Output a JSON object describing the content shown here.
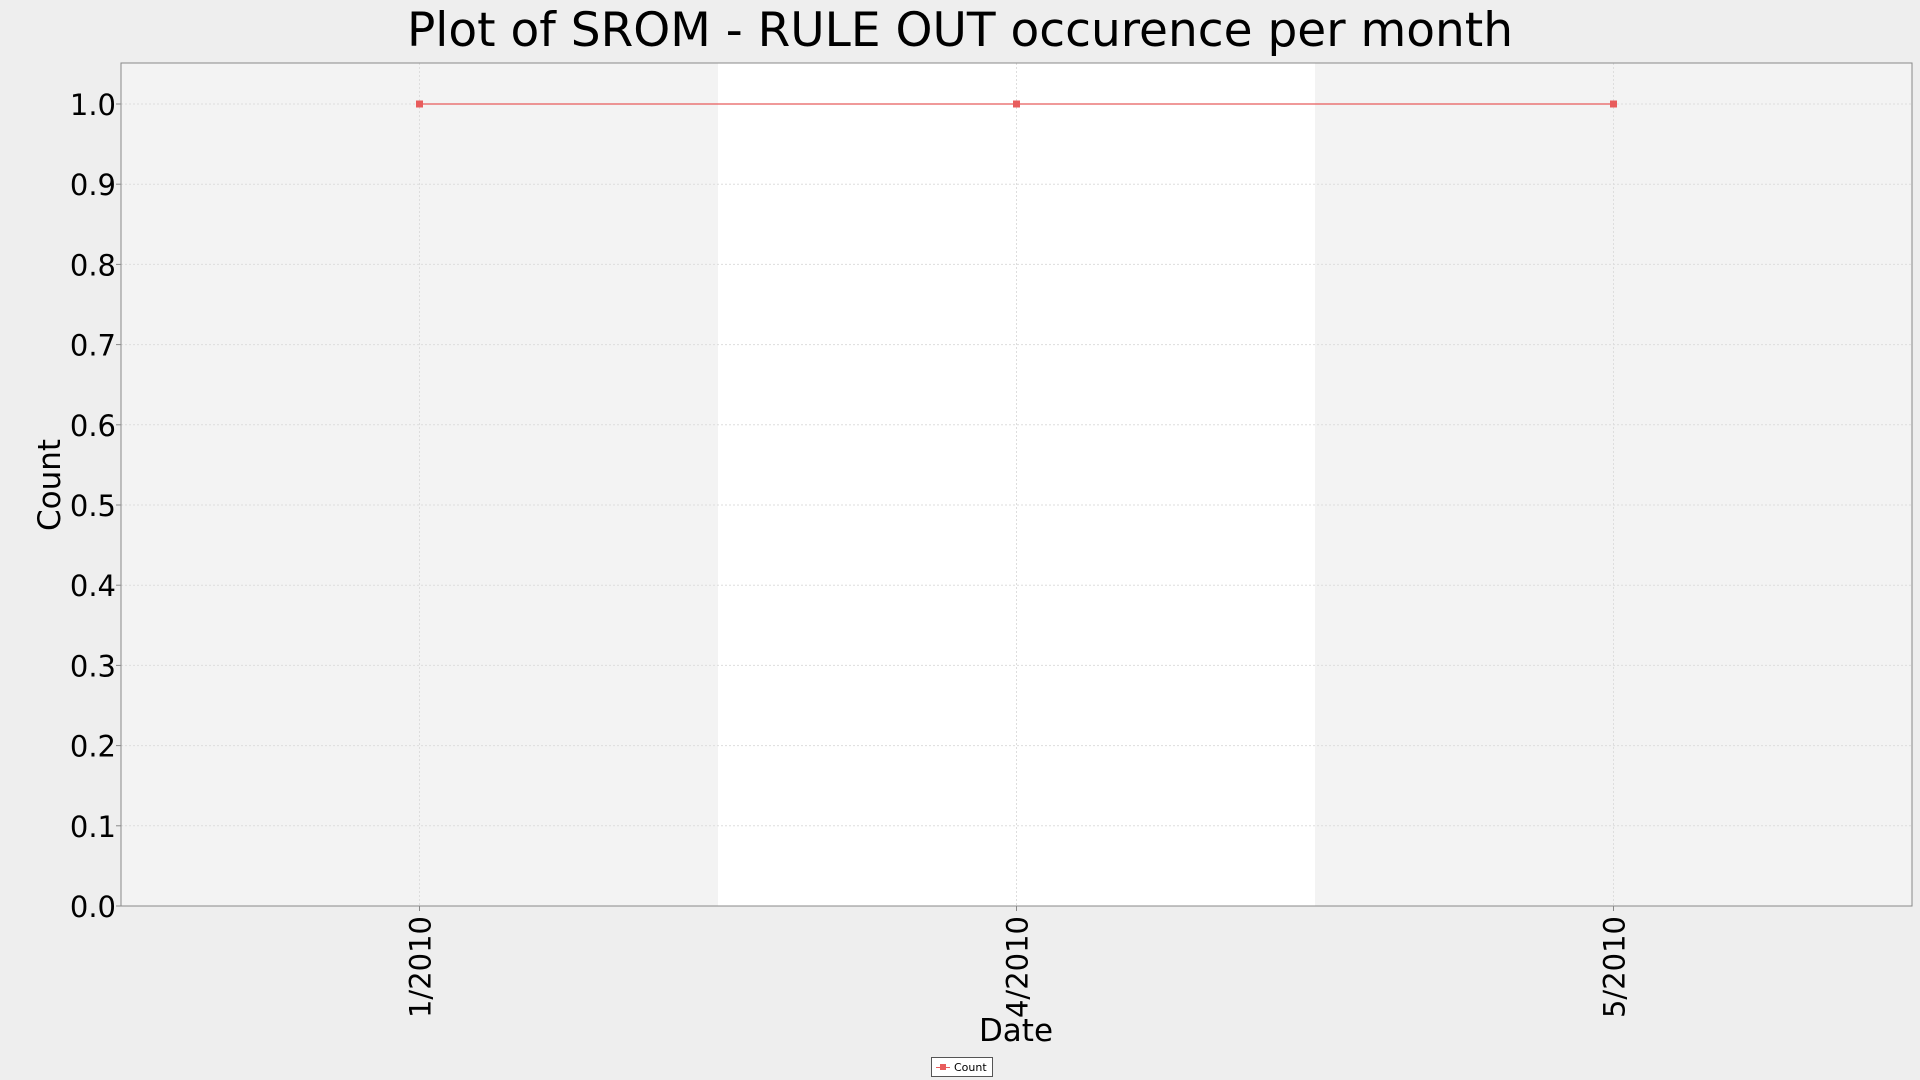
{
  "chart_data": {
    "type": "line",
    "title": "Plot of SROM - RULE OUT occurence per month",
    "xlabel": "Date",
    "ylabel": "Count",
    "categories": [
      "1/2010",
      "4/2010",
      "5/2010"
    ],
    "series": [
      {
        "name": "Count",
        "values": [
          1.0,
          1.0,
          1.0
        ],
        "color": "#e85c5c"
      }
    ],
    "ylim": [
      0.0,
      1.0
    ],
    "yticks": [
      "0.0",
      "0.1",
      "0.2",
      "0.3",
      "0.4",
      "0.5",
      "0.6",
      "0.7",
      "0.8",
      "0.9",
      "1.0"
    ],
    "grid": true,
    "legend_position": "bottom-center",
    "colors": {
      "plot_band_dark": "#f3f3f3",
      "plot_band_light": "#ffffff",
      "gridline": "#dddddd",
      "axis": "#888888"
    }
  }
}
